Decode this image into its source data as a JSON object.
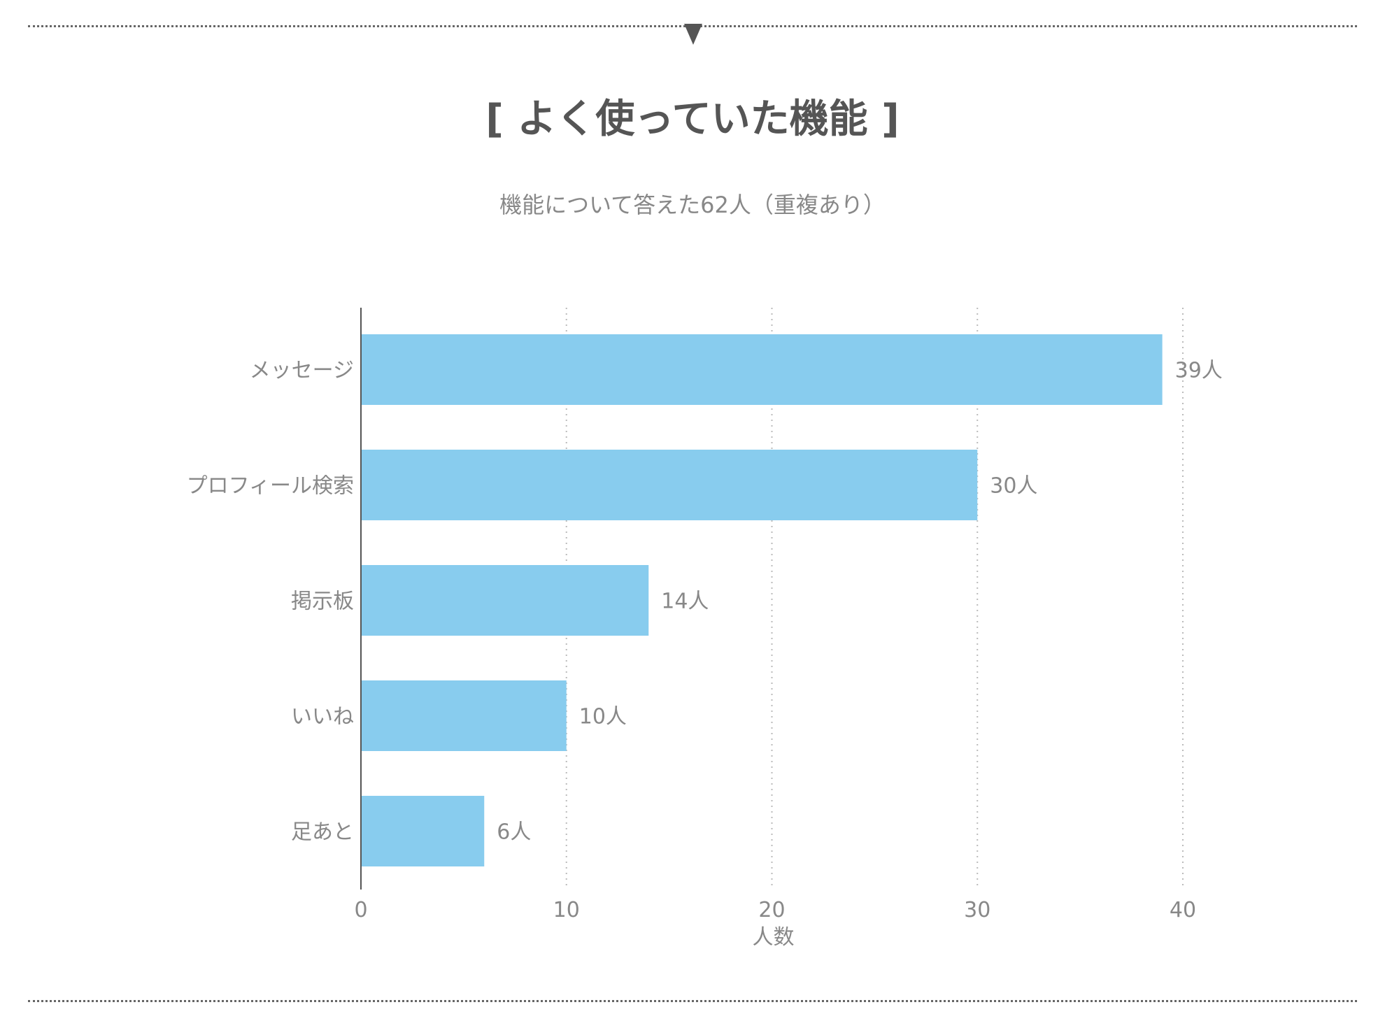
{
  "header": {
    "title": "[ よく使っていた機能 ]",
    "subtitle": "機能について答えた62人（重複あり）"
  },
  "chart_data": {
    "type": "bar",
    "orientation": "horizontal",
    "categories": [
      "メッセージ",
      "プロフィール検索",
      "掲示板",
      "いいね",
      "足あと"
    ],
    "values": [
      39,
      30,
      14,
      10,
      6
    ],
    "data_labels": [
      "39人",
      "30人",
      "14人",
      "10人",
      "6人"
    ],
    "xlabel": "人数",
    "xlim": [
      0,
      40
    ],
    "xticks": [
      0,
      10,
      20,
      30,
      40
    ],
    "grid": "vertical-dotted",
    "legend": "none",
    "colors": {
      "bar": "#88CCEE",
      "axis": "#555555",
      "grid": "#BBBBBB",
      "text": "#888888"
    }
  }
}
